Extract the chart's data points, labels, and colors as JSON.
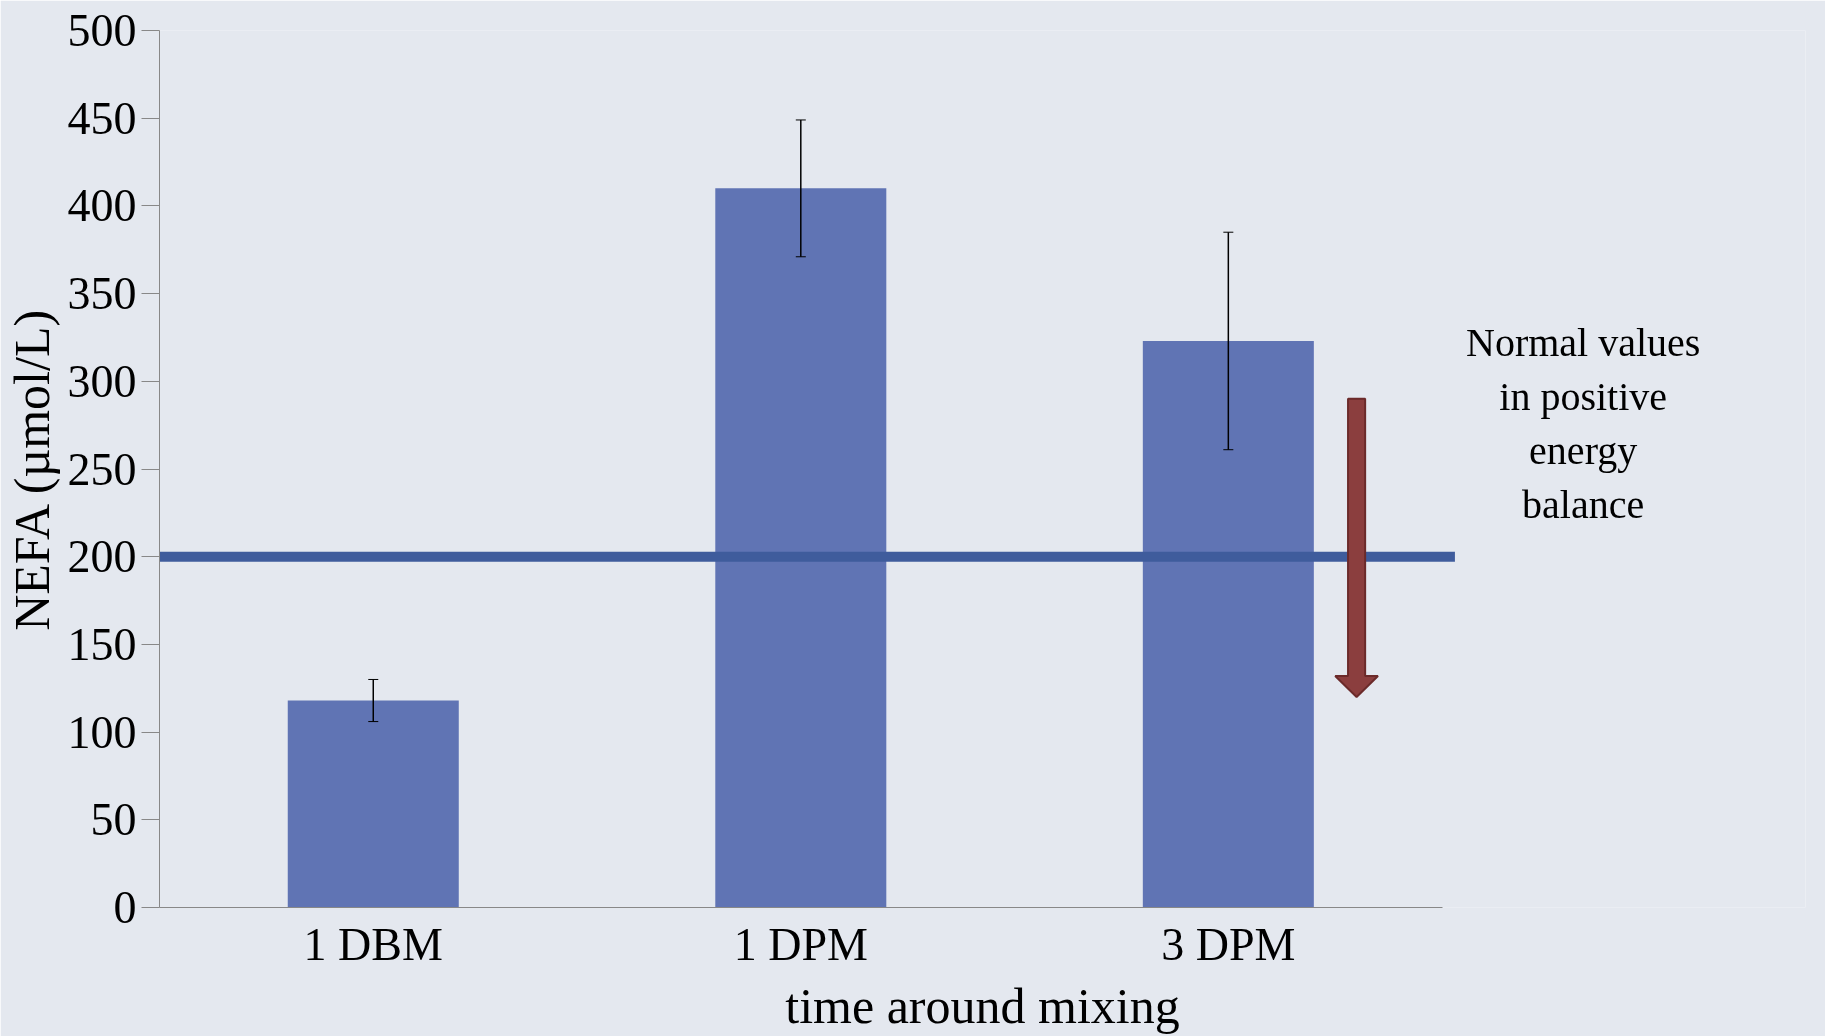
{
  "chart_data": {
    "type": "bar",
    "xlabel": "time around mixing",
    "ylabel": "NEFA (µmol/L)",
    "categories": [
      "1 DBM",
      "1 DPM",
      "3 DPM"
    ],
    "values": [
      118,
      410,
      323
    ],
    "errors": [
      12,
      39,
      62
    ],
    "color": "#6074b4",
    "ylim": [
      0,
      500
    ],
    "yticks": [
      0,
      50,
      100,
      150,
      200,
      250,
      300,
      350,
      400,
      450,
      500
    ],
    "grid": false,
    "ref_lines": [
      {
        "axis": "y",
        "value": 200,
        "label": "Normal values\nin positive\nenergy\nbalance",
        "color": "#3f5c9c"
      }
    ]
  }
}
